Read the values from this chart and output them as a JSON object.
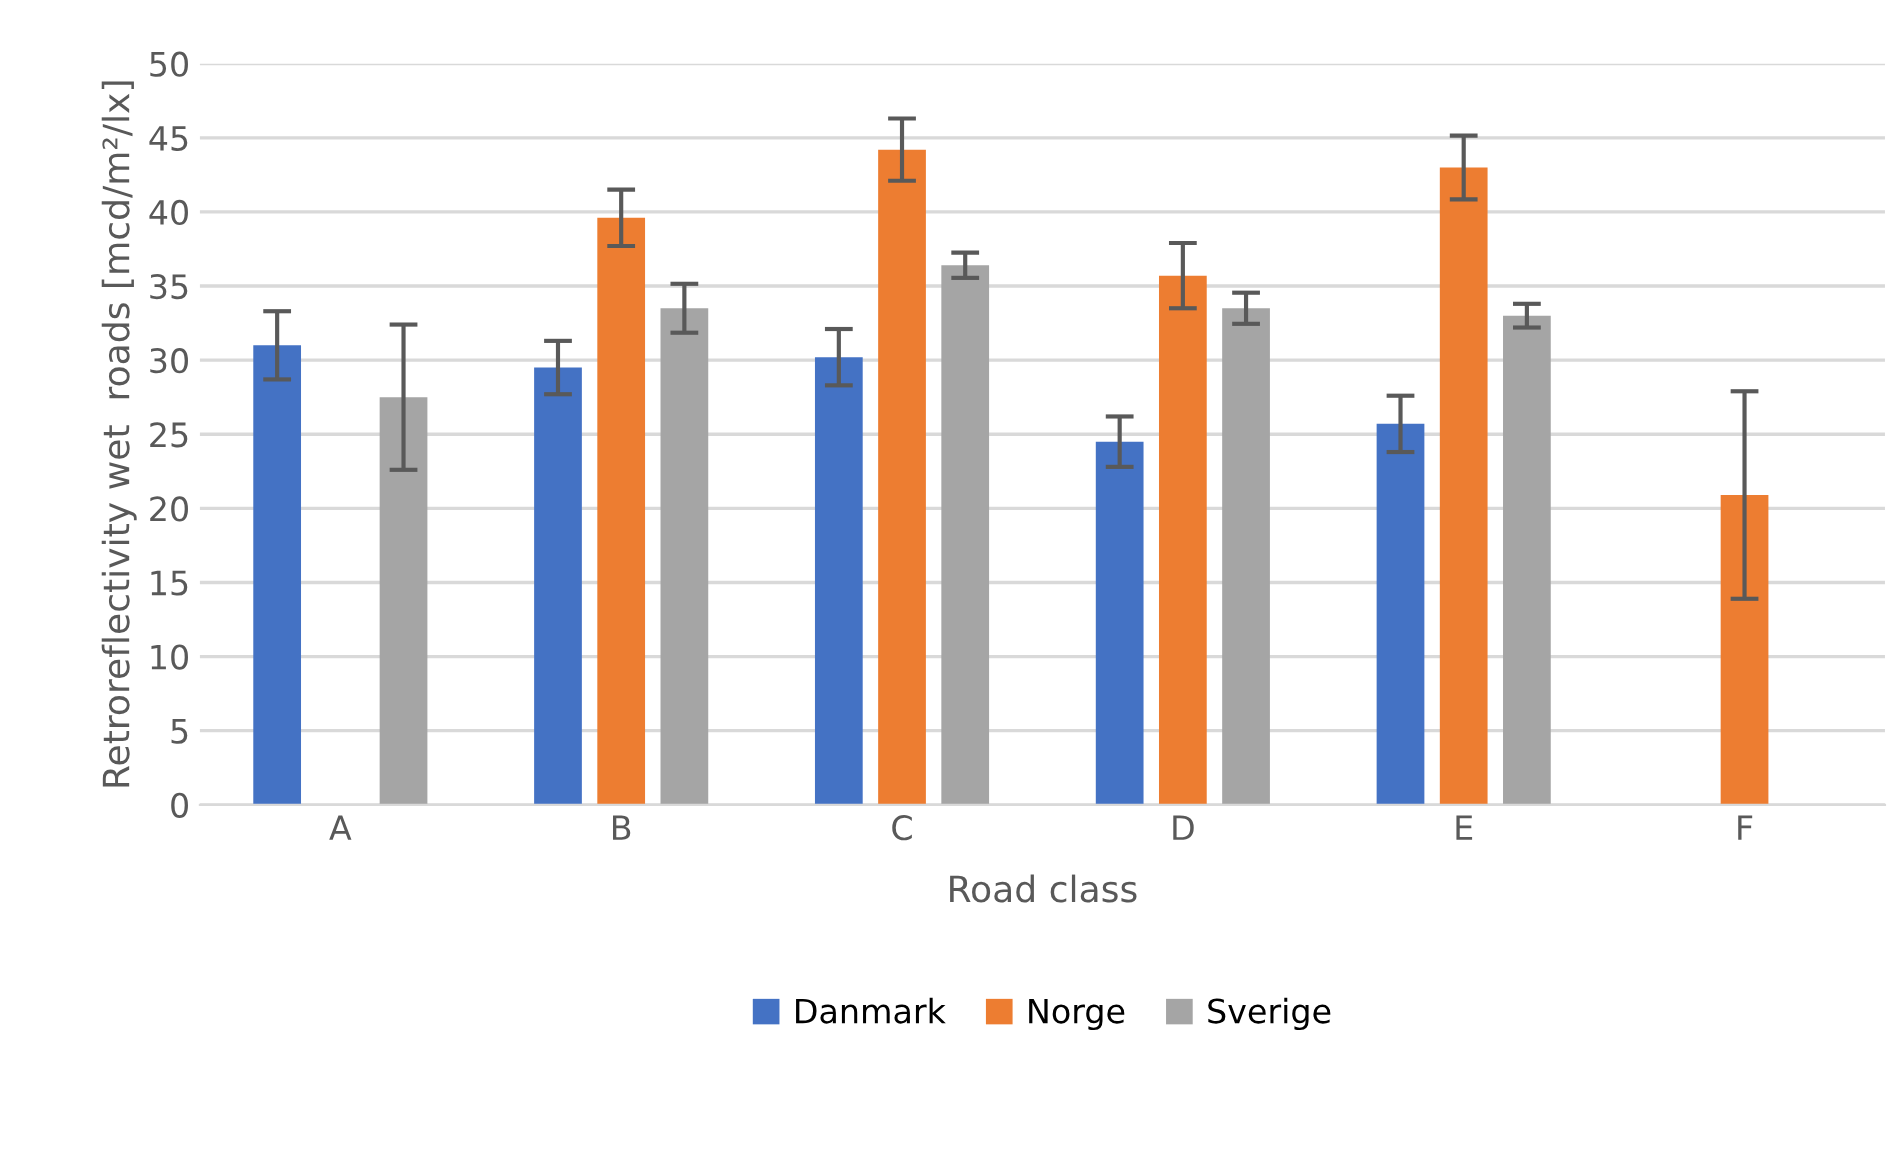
{
  "chart_data": {
    "type": "bar",
    "xlabel": "Road class",
    "ylabel": "Retroreflectivity wet  roads [mcd/m²/lx]",
    "categories": [
      "A",
      "B",
      "C",
      "D",
      "E",
      "F"
    ],
    "series": [
      {
        "name": "Danmark",
        "color": "#4472c4",
        "values": [
          31.0,
          29.5,
          30.2,
          24.5,
          25.7,
          null
        ],
        "errors": [
          2.3,
          1.8,
          1.9,
          1.7,
          1.9,
          null
        ]
      },
      {
        "name": "Norge",
        "color": "#ed7d31",
        "values": [
          null,
          39.6,
          44.2,
          35.7,
          43.0,
          20.9
        ],
        "errors": [
          null,
          1.9,
          2.1,
          2.2,
          2.15,
          7.0
        ]
      },
      {
        "name": "Sverige",
        "color": "#a5a5a5",
        "values": [
          27.5,
          33.5,
          36.4,
          33.5,
          33.0,
          null
        ],
        "errors": [
          4.9,
          1.65,
          0.85,
          1.05,
          0.8,
          null
        ]
      }
    ],
    "ylim": [
      0,
      50
    ],
    "yticks": [
      0,
      5,
      10,
      15,
      20,
      25,
      30,
      35,
      40,
      45,
      50
    ],
    "grid": "y",
    "legend": "bottom"
  }
}
